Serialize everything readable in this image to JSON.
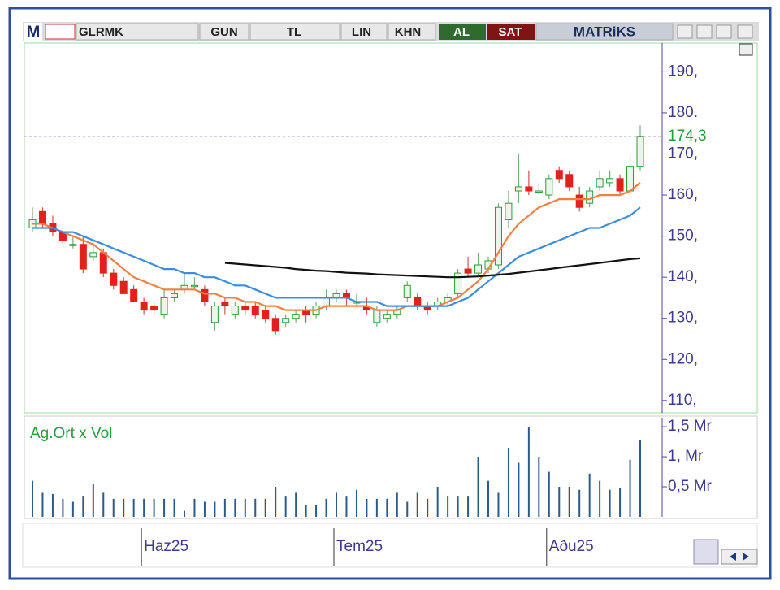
{
  "toolbar": {
    "logo": "M",
    "symbol": "GLRMK",
    "period": "GUN",
    "currency": "TL",
    "scale": "LIN",
    "mode": "KHN",
    "buy": "AL",
    "sell": "SAT",
    "brand": "MATRiKS"
  },
  "chart_data": {
    "type": "candlestick",
    "ylim": [
      107,
      197
    ],
    "yticks": [
      {
        "value": 190,
        "label": "190,"
      },
      {
        "value": 180,
        "label": "180."
      },
      {
        "value": 170,
        "label": "170,"
      },
      {
        "value": 160,
        "label": "160,"
      },
      {
        "value": 150,
        "label": "150,"
      },
      {
        "value": 140,
        "label": "140,"
      },
      {
        "value": 130,
        "label": "130,"
      },
      {
        "value": 120,
        "label": "120,"
      },
      {
        "value": 110,
        "label": "110,"
      }
    ],
    "last_price": {
      "value": 174.3,
      "label": "174,3"
    },
    "x_labels": [
      {
        "index": 11,
        "label": "Haz25"
      },
      {
        "index": 30,
        "label": "Tem25"
      },
      {
        "index": 51,
        "label": "Aðu25"
      }
    ],
    "up_color": "#2e9a3e",
    "down_color": "#e3201c",
    "candles": [
      [
        152,
        157,
        151,
        154
      ],
      [
        156,
        157,
        152,
        153
      ],
      [
        153,
        155,
        150,
        151
      ],
      [
        151,
        152,
        148,
        149
      ],
      [
        148,
        150,
        147,
        148
      ],
      [
        148,
        150,
        141,
        142
      ],
      [
        145,
        149,
        144,
        146
      ],
      [
        146,
        147,
        140,
        141
      ],
      [
        141,
        142,
        137,
        138
      ],
      [
        139,
        140,
        136,
        136
      ],
      [
        137,
        138,
        134,
        134
      ],
      [
        134,
        135,
        131,
        132
      ],
      [
        133,
        134,
        131,
        132
      ],
      [
        131,
        137,
        130,
        135
      ],
      [
        135,
        137,
        134,
        136
      ],
      [
        137,
        141,
        136,
        138
      ],
      [
        138,
        140,
        137,
        138
      ],
      [
        137,
        138,
        133,
        134
      ],
      [
        129,
        134,
        127,
        133
      ],
      [
        134,
        135,
        131,
        133
      ],
      [
        131,
        134,
        130,
        133
      ],
      [
        133,
        134,
        131,
        132
      ],
      [
        133,
        134,
        130,
        131
      ],
      [
        132,
        133,
        129,
        130
      ],
      [
        130,
        131,
        126,
        127
      ],
      [
        129,
        131,
        128,
        130
      ],
      [
        130,
        132,
        129,
        131
      ],
      [
        132,
        133,
        129,
        131
      ],
      [
        131,
        134,
        130,
        133
      ],
      [
        133,
        137,
        132,
        135
      ],
      [
        135,
        137,
        134,
        136
      ],
      [
        136,
        137,
        133,
        135
      ],
      [
        134,
        136,
        133,
        134
      ],
      [
        133,
        135,
        131,
        132
      ],
      [
        129,
        133,
        128,
        132
      ],
      [
        130,
        132,
        129,
        131
      ],
      [
        131,
        133,
        130,
        132
      ],
      [
        135,
        139,
        134,
        138
      ],
      [
        135,
        136,
        132,
        133
      ],
      [
        133,
        134,
        131,
        132
      ],
      [
        133,
        135,
        132,
        134
      ],
      [
        134,
        136,
        133,
        135
      ],
      [
        136,
        142,
        135,
        141
      ],
      [
        142,
        145,
        140,
        141
      ],
      [
        141,
        146,
        140,
        143
      ],
      [
        142,
        145,
        141,
        144
      ],
      [
        143,
        158,
        142,
        157
      ],
      [
        154,
        161,
        152,
        158
      ],
      [
        161,
        170,
        158,
        162
      ],
      [
        162,
        166,
        160,
        161
      ],
      [
        161,
        163,
        160,
        161
      ],
      [
        160,
        165,
        159,
        164
      ],
      [
        166,
        167,
        163,
        164
      ],
      [
        165,
        166,
        161,
        162
      ],
      [
        160,
        162,
        156,
        157
      ],
      [
        158,
        162,
        157,
        161
      ],
      [
        162,
        166,
        161,
        164
      ],
      [
        163,
        166,
        162,
        164
      ],
      [
        164,
        165,
        160,
        161
      ],
      [
        161,
        170,
        159,
        167
      ],
      [
        167,
        177,
        166,
        174.3
      ]
    ],
    "lines": [
      {
        "color": "#f08040",
        "values": [
          153,
          153,
          152,
          151,
          150,
          149,
          148,
          146,
          144,
          142,
          140,
          139,
          138,
          137,
          137,
          137,
          137,
          136,
          136,
          135,
          135,
          134,
          134,
          133,
          133,
          132,
          132,
          132,
          132,
          133,
          133,
          133,
          133,
          133,
          132,
          132,
          132,
          133,
          133,
          133,
          133,
          134,
          135,
          137,
          139,
          142,
          146,
          150,
          153,
          155,
          157,
          158,
          159,
          159,
          159,
          159,
          160,
          160,
          160,
          161,
          163
        ]
      },
      {
        "color": "#3a8ee0",
        "values": [
          152,
          152,
          152,
          151,
          151,
          150,
          149,
          148,
          147,
          146,
          145,
          144,
          143,
          142,
          142,
          141,
          141,
          140,
          140,
          139,
          138,
          138,
          137,
          136,
          135,
          135,
          135,
          135,
          135,
          135,
          135,
          135,
          134,
          134,
          134,
          133,
          133,
          133,
          133,
          133,
          133,
          133,
          134,
          135,
          137,
          139,
          141,
          143,
          145,
          146,
          147,
          148,
          149,
          150,
          151,
          152,
          152,
          153,
          154,
          155,
          157
        ]
      },
      {
        "color": "#111111",
        "values": [
          null,
          null,
          null,
          null,
          null,
          null,
          null,
          null,
          null,
          null,
          null,
          null,
          null,
          null,
          null,
          null,
          null,
          null,
          null,
          143.5,
          143.3,
          143.1,
          142.9,
          142.7,
          142.5,
          142.3,
          142,
          141.8,
          141.6,
          141.5,
          141.3,
          141.1,
          141,
          140.9,
          140.7,
          140.6,
          140.5,
          140.4,
          140.3,
          140.2,
          140.1,
          140,
          140,
          140.1,
          140.2,
          140.4,
          140.6,
          140.8,
          141.1,
          141.4,
          141.7,
          142,
          142.3,
          142.6,
          142.9,
          143.2,
          143.5,
          143.8,
          144.1,
          144.4,
          144.6
        ]
      }
    ],
    "volume": {
      "title": "Ag.Ort x Vol",
      "color": "#2d5a8c",
      "ylim": [
        0,
        1.65
      ],
      "yticks": [
        {
          "value": 1.5,
          "label": "1,5 Mr"
        },
        {
          "value": 1,
          "label": "1, Mr"
        },
        {
          "value": 0.5,
          "label": "0,5 Mr"
        }
      ],
      "values": [
        0.6,
        0.4,
        0.38,
        0.3,
        0.25,
        0.35,
        0.55,
        0.4,
        0.3,
        0.3,
        0.3,
        0.3,
        0.3,
        0.3,
        0.3,
        0.1,
        0.3,
        0.25,
        0.25,
        0.3,
        0.3,
        0.3,
        0.3,
        0.3,
        0.5,
        0.35,
        0.4,
        0.2,
        0.2,
        0.3,
        0.4,
        0.35,
        0.45,
        0.3,
        0.3,
        0.3,
        0.4,
        0.25,
        0.4,
        0.3,
        0.5,
        0.35,
        0.35,
        0.35,
        1.0,
        0.6,
        0.4,
        1.15,
        0.9,
        1.5,
        1.0,
        0.75,
        0.5,
        0.5,
        0.45,
        0.72,
        0.6,
        0.45,
        0.48,
        0.95,
        1.28
      ]
    }
  }
}
